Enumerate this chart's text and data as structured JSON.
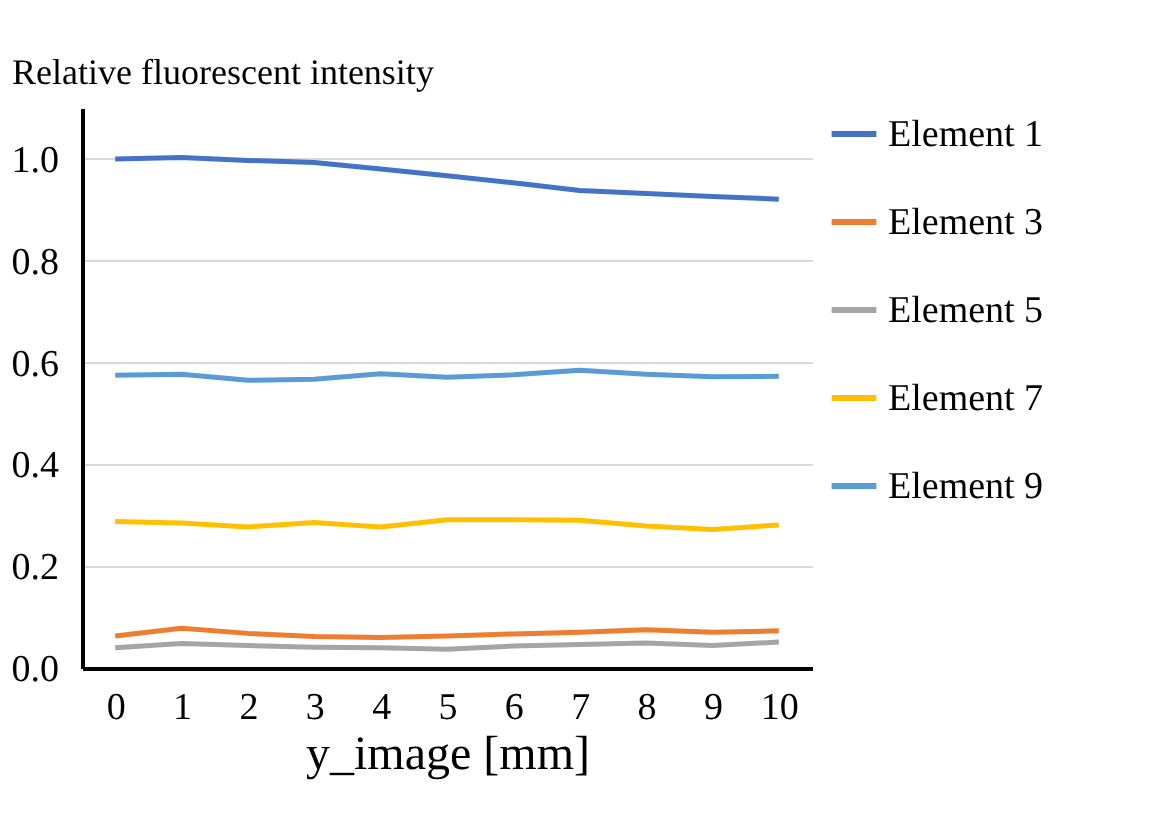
{
  "chart_data": {
    "type": "line",
    "ylabel": "Relative fluorescent intensity",
    "xlabel": "y_image [mm]",
    "categories": [
      "0",
      "1",
      "2",
      "3",
      "4",
      "5",
      "6",
      "7",
      "8",
      "9",
      "10"
    ],
    "series": [
      {
        "name": "Element 1",
        "color": "#4472c4",
        "values": [
          1.0,
          1.003,
          0.997,
          0.993,
          0.98,
          0.967,
          0.953,
          0.938,
          0.932,
          0.926,
          0.921
        ]
      },
      {
        "name": "Element 3",
        "color": "#ed7d31",
        "values": [
          0.063,
          0.078,
          0.068,
          0.062,
          0.06,
          0.063,
          0.067,
          0.07,
          0.075,
          0.07,
          0.073
        ]
      },
      {
        "name": "Element 5",
        "color": "#a5a5a5",
        "values": [
          0.04,
          0.048,
          0.044,
          0.041,
          0.04,
          0.037,
          0.043,
          0.046,
          0.049,
          0.044,
          0.051
        ]
      },
      {
        "name": "Element 7",
        "color": "#ffc000",
        "values": [
          0.288,
          0.285,
          0.277,
          0.286,
          0.277,
          0.291,
          0.291,
          0.29,
          0.279,
          0.272,
          0.281
        ]
      },
      {
        "name": "Element 9",
        "color": "#5b9bd5",
        "values": [
          0.575,
          0.577,
          0.565,
          0.567,
          0.578,
          0.571,
          0.576,
          0.585,
          0.577,
          0.572,
          0.573
        ]
      }
    ],
    "ylim": [
      0,
      1.1
    ],
    "yticks": [
      {
        "value": 0,
        "label": "0.0"
      },
      0.2,
      0.4,
      0.6,
      0.8,
      {
        "value": 1,
        "label": "1.0"
      }
    ],
    "grid": "y",
    "legend": "right",
    "marker": "none",
    "line_style": "solid"
  }
}
